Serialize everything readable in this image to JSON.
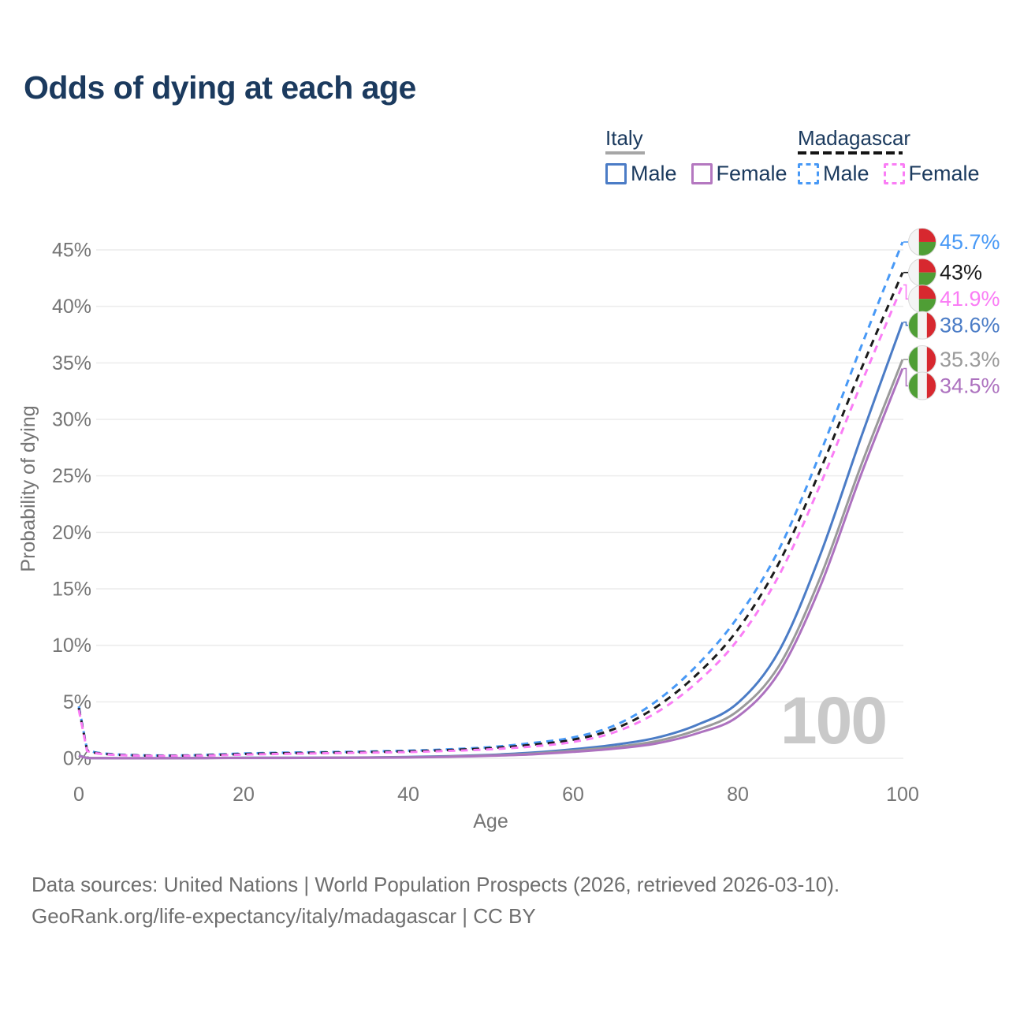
{
  "header": {
    "title": "Odds of dying at each age"
  },
  "legend": {
    "groups": [
      {
        "country": "Italy",
        "style": "solid",
        "underline_color": "#a6a6a6",
        "items": [
          {
            "label": "Male",
            "color": "#4b7cc6"
          },
          {
            "label": "Female",
            "color": "#b478c0"
          }
        ]
      },
      {
        "country": "Madagascar",
        "style": "dashed",
        "underline_color": "#141414",
        "items": [
          {
            "label": "Male",
            "color": "#4899f6"
          },
          {
            "label": "Female",
            "color": "#fa7df5"
          }
        ]
      }
    ]
  },
  "chart_data": {
    "type": "line",
    "title": "Odds of dying at each age",
    "xlabel": "Age",
    "ylabel": "Probability of dying",
    "x_ticks": [
      0,
      20,
      40,
      60,
      80,
      100
    ],
    "y_ticks_percent": [
      0,
      5,
      10,
      15,
      20,
      25,
      30,
      35,
      40,
      45
    ],
    "xlim": [
      0,
      100
    ],
    "ylim_percent": [
      0,
      46
    ],
    "grid": true,
    "legend_position": "top-right",
    "hover_age_watermark": "100",
    "x": [
      0,
      1,
      2,
      5,
      10,
      15,
      20,
      25,
      30,
      35,
      40,
      45,
      50,
      55,
      60,
      65,
      70,
      75,
      80,
      85,
      90,
      95,
      100
    ],
    "series": [
      {
        "name": "Madagascar Male",
        "country": "Madagascar",
        "sex": "Male",
        "color": "#4899f6",
        "dashed": true,
        "flag": "madagascar",
        "end_label": "45.7%",
        "end_value_percent": 45.7,
        "values": [
          4.6,
          0.75,
          0.52,
          0.33,
          0.25,
          0.3,
          0.43,
          0.5,
          0.55,
          0.6,
          0.68,
          0.8,
          1.0,
          1.35,
          1.85,
          2.9,
          5.0,
          8.2,
          12.5,
          18.5,
          27.0,
          36.5,
          45.7
        ]
      },
      {
        "name": "Madagascar All",
        "country": "Madagascar",
        "sex": "All",
        "color": "#1b1b1b",
        "dashed": true,
        "flag": "madagascar",
        "end_label": "43%",
        "end_value_percent": 43,
        "values": [
          4.45,
          0.7,
          0.48,
          0.3,
          0.23,
          0.27,
          0.38,
          0.45,
          0.5,
          0.55,
          0.62,
          0.73,
          0.9,
          1.2,
          1.65,
          2.6,
          4.5,
          7.4,
          11.4,
          17.3,
          25.5,
          34.5,
          43.0
        ]
      },
      {
        "name": "Madagascar Female",
        "country": "Madagascar",
        "sex": "Female",
        "color": "#fa7df5",
        "dashed": true,
        "flag": "madagascar",
        "end_label": "41.9%",
        "end_value_percent": 41.9,
        "values": [
          4.3,
          0.65,
          0.45,
          0.28,
          0.21,
          0.24,
          0.33,
          0.4,
          0.45,
          0.5,
          0.56,
          0.66,
          0.8,
          1.05,
          1.45,
          2.3,
          4.0,
          6.7,
          10.5,
          16.2,
          24.2,
          33.2,
          41.9
        ]
      },
      {
        "name": "Italy Male",
        "country": "Italy",
        "sex": "Male",
        "color": "#4b7cc6",
        "dashed": false,
        "flag": "italy",
        "end_label": "38.6%",
        "end_value_percent": 38.6,
        "values": [
          0.26,
          0.03,
          0.02,
          0.01,
          0.01,
          0.03,
          0.05,
          0.05,
          0.06,
          0.08,
          0.12,
          0.19,
          0.31,
          0.5,
          0.8,
          1.2,
          1.8,
          2.95,
          4.9,
          9.5,
          18.0,
          28.5,
          38.6
        ]
      },
      {
        "name": "Italy All",
        "country": "Italy",
        "sex": "All",
        "color": "#9a9a9a",
        "dashed": false,
        "flag": "italy",
        "end_label": "35.3%",
        "end_value_percent": 35.3,
        "values": [
          0.24,
          0.03,
          0.02,
          0.01,
          0.01,
          0.02,
          0.04,
          0.04,
          0.05,
          0.07,
          0.1,
          0.16,
          0.26,
          0.42,
          0.68,
          1.0,
          1.5,
          2.5,
          4.2,
          8.2,
          16.0,
          26.0,
          35.3
        ]
      },
      {
        "name": "Italy Female",
        "country": "Italy",
        "sex": "Female",
        "color": "#ad72bf",
        "dashed": false,
        "flag": "italy",
        "end_label": "34.5%",
        "end_value_percent": 34.5,
        "values": [
          0.22,
          0.02,
          0.02,
          0.01,
          0.01,
          0.02,
          0.03,
          0.03,
          0.04,
          0.05,
          0.08,
          0.13,
          0.22,
          0.35,
          0.57,
          0.85,
          1.3,
          2.2,
          3.7,
          7.6,
          15.2,
          25.2,
          34.5
        ]
      }
    ],
    "flag_colors": {
      "red": "#d7282f",
      "green": "#4f9e35",
      "white": "#f4f4f4"
    },
    "style_colors": {
      "grid": "#ececec",
      "axis_text": "#757575",
      "watermark": "#c9c9c9",
      "title": "#1b3a5e",
      "footer": "#6e6e6e"
    }
  },
  "footer": {
    "line1": "Data sources: United Nations | World Population Prospects (2026, retrieved 2026-03-10).",
    "line2": "GeoRank.org/life-expectancy/italy/madagascar | CC BY"
  }
}
